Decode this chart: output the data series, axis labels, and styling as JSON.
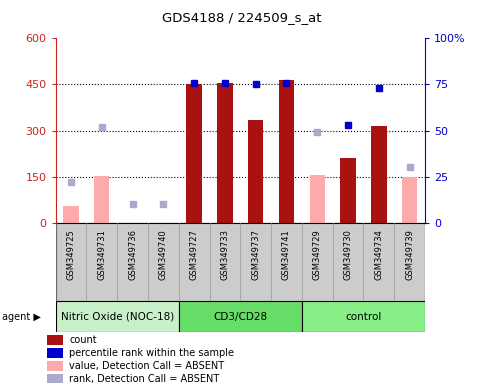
{
  "title": "GDS4188 / 224509_s_at",
  "samples": [
    "GSM349725",
    "GSM349731",
    "GSM349736",
    "GSM349740",
    "GSM349727",
    "GSM349733",
    "GSM349737",
    "GSM349741",
    "GSM349729",
    "GSM349730",
    "GSM349734",
    "GSM349739"
  ],
  "groups": [
    {
      "name": "Nitric Oxide (NOC-18)",
      "start": 0,
      "end": 4,
      "color": "#c8f0c8"
    },
    {
      "name": "CD3/CD28",
      "start": 4,
      "end": 8,
      "color": "#66dd66"
    },
    {
      "name": "control",
      "start": 8,
      "end": 12,
      "color": "#88ee88"
    }
  ],
  "count_values": [
    null,
    null,
    null,
    null,
    453,
    455,
    335,
    465,
    null,
    210,
    315,
    null
  ],
  "count_absent": [
    55,
    153,
    null,
    null,
    null,
    null,
    null,
    null,
    155,
    null,
    null,
    148
  ],
  "percentile_present": [
    null,
    null,
    null,
    null,
    76,
    76,
    75,
    76,
    null,
    53,
    73,
    null
  ],
  "percentile_absent": [
    22,
    52,
    10,
    10,
    null,
    null,
    null,
    null,
    49,
    null,
    null,
    30
  ],
  "ylim_left": [
    0,
    600
  ],
  "ylim_right": [
    0,
    100
  ],
  "yticks_left": [
    0,
    150,
    300,
    450,
    600
  ],
  "yticks_right": [
    0,
    25,
    50,
    75,
    100
  ],
  "ytick_labels_right": [
    "0",
    "25",
    "50",
    "75",
    "100%"
  ],
  "dotted_lines": [
    150,
    300,
    450
  ],
  "colors": {
    "bar_present": "#aa1111",
    "bar_absent": "#ffaaaa",
    "dot_present": "#0000cc",
    "dot_absent": "#aaaacc",
    "axis_left": "#cc2222",
    "axis_right": "#0000cc",
    "sample_bg": "#cccccc",
    "sample_divider": "#999999"
  },
  "bar_width": 0.5,
  "legend_items": [
    {
      "color": "#aa1111",
      "label": "count",
      "marker": "s"
    },
    {
      "color": "#0000cc",
      "label": "percentile rank within the sample",
      "marker": "s"
    },
    {
      "color": "#ffaaaa",
      "label": "value, Detection Call = ABSENT",
      "marker": "s"
    },
    {
      "color": "#aaaacc",
      "label": "rank, Detection Call = ABSENT",
      "marker": "s"
    }
  ]
}
